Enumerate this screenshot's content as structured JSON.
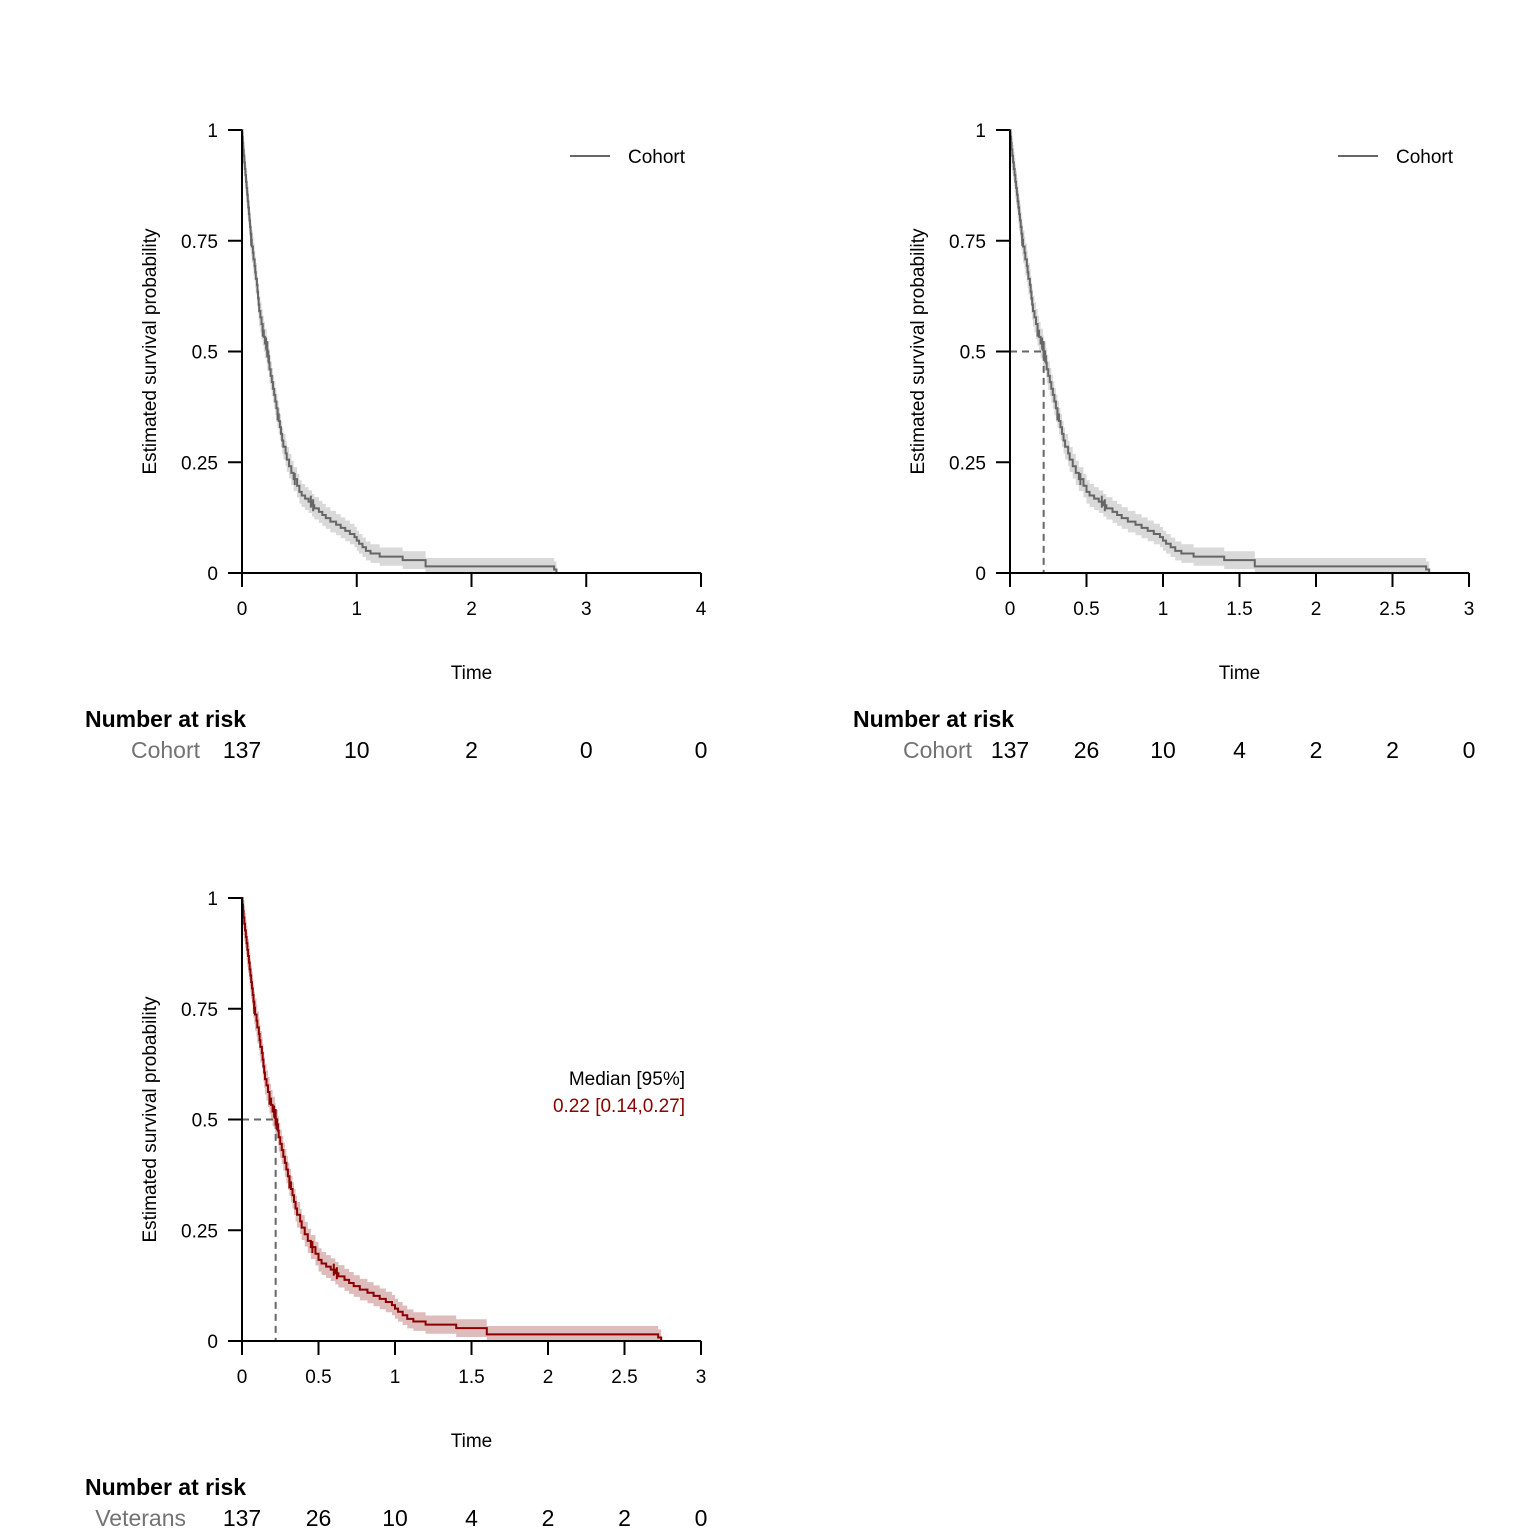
{
  "colors": {
    "grey_line": "#666666",
    "grey_band": "#d9d9d9",
    "red_line": "#8b0000",
    "red_band": "#dfbcbc",
    "strata_text": "#737373",
    "median_ref": "#666666"
  },
  "curve": {
    "steps": [
      [
        0,
        1
      ],
      [
        0.003,
        0.985
      ],
      [
        0.007,
        0.971
      ],
      [
        0.01,
        0.956
      ],
      [
        0.015,
        0.942
      ],
      [
        0.02,
        0.927
      ],
      [
        0.025,
        0.912
      ],
      [
        0.03,
        0.898
      ],
      [
        0.035,
        0.883
      ],
      [
        0.04,
        0.869
      ],
      [
        0.045,
        0.854
      ],
      [
        0.05,
        0.839
      ],
      [
        0.055,
        0.825
      ],
      [
        0.06,
        0.81
      ],
      [
        0.065,
        0.796
      ],
      [
        0.07,
        0.781
      ],
      [
        0.075,
        0.766
      ],
      [
        0.08,
        0.752
      ],
      [
        0.085,
        0.737
      ],
      [
        0.095,
        0.723
      ],
      [
        0.1,
        0.708
      ],
      [
        0.11,
        0.693
      ],
      [
        0.115,
        0.679
      ],
      [
        0.12,
        0.664
      ],
      [
        0.13,
        0.65
      ],
      [
        0.135,
        0.635
      ],
      [
        0.14,
        0.62
      ],
      [
        0.145,
        0.606
      ],
      [
        0.15,
        0.591
      ],
      [
        0.16,
        0.577
      ],
      [
        0.17,
        0.562
      ],
      [
        0.18,
        0.547
      ],
      [
        0.19,
        0.533
      ],
      [
        0.2,
        0.518
      ],
      [
        0.215,
        0.504
      ],
      [
        0.22,
        0.489
      ],
      [
        0.235,
        0.475
      ],
      [
        0.24,
        0.46
      ],
      [
        0.25,
        0.445
      ],
      [
        0.26,
        0.431
      ],
      [
        0.27,
        0.416
      ],
      [
        0.28,
        0.402
      ],
      [
        0.29,
        0.387
      ],
      [
        0.3,
        0.372
      ],
      [
        0.31,
        0.358
      ],
      [
        0.32,
        0.343
      ],
      [
        0.33,
        0.329
      ],
      [
        0.34,
        0.314
      ],
      [
        0.35,
        0.299
      ],
      [
        0.36,
        0.285
      ],
      [
        0.38,
        0.27
      ],
      [
        0.39,
        0.256
      ],
      [
        0.41,
        0.241
      ],
      [
        0.43,
        0.226
      ],
      [
        0.45,
        0.212
      ],
      [
        0.48,
        0.197
      ],
      [
        0.5,
        0.183
      ],
      [
        0.52,
        0.175
      ],
      [
        0.55,
        0.168
      ],
      [
        0.58,
        0.161
      ],
      [
        0.61,
        0.153
      ],
      [
        0.63,
        0.146
      ],
      [
        0.67,
        0.138
      ],
      [
        0.7,
        0.131
      ],
      [
        0.73,
        0.124
      ],
      [
        0.77,
        0.116
      ],
      [
        0.82,
        0.109
      ],
      [
        0.86,
        0.102
      ],
      [
        0.9,
        0.095
      ],
      [
        0.94,
        0.088
      ],
      [
        0.98,
        0.081
      ],
      [
        1.0,
        0.073
      ],
      [
        1.02,
        0.066
      ],
      [
        1.05,
        0.058
      ],
      [
        1.08,
        0.05
      ],
      [
        1.12,
        0.044
      ],
      [
        1.2,
        0.037
      ],
      [
        1.4,
        0.029
      ],
      [
        1.6,
        0.015
      ],
      [
        2.72,
        0.008
      ],
      [
        2.74,
        0
      ]
    ],
    "censored": [
      [
        0.08,
        0.752
      ],
      [
        0.18,
        0.547
      ],
      [
        0.21,
        0.518
      ],
      [
        0.22,
        0.51
      ],
      [
        0.23,
        0.489
      ],
      [
        0.31,
        0.358
      ],
      [
        0.46,
        0.212
      ],
      [
        0.6,
        0.161
      ],
      [
        0.62,
        0.153
      ]
    ],
    "ci_halfwidth": 0.04
  },
  "charts": [
    {
      "chart_data": {
        "type": "line",
        "ylabel": "Estimated survival probability",
        "xlabel": "Time",
        "xlim": [
          0,
          4
        ],
        "ylim": [
          0,
          1
        ],
        "xticks": [
          "0",
          "1",
          "2",
          "3",
          "4"
        ],
        "yticks": [
          "0",
          "0.25",
          "0.5",
          "0.75",
          "1"
        ],
        "series": [
          {
            "name": "Cohort",
            "color": "#666666"
          }
        ],
        "legend_position": "top-right",
        "median_reference": null,
        "risk_table": {
          "title": "Number at risk",
          "strata": "Cohort",
          "times": [
            0,
            1,
            2,
            3,
            4
          ],
          "values": [
            "137",
            "10",
            "2",
            "0",
            "0"
          ]
        }
      }
    },
    {
      "chart_data": {
        "type": "line",
        "ylabel": "Estimated survival probability",
        "xlabel": "Time",
        "xlim": [
          0,
          3
        ],
        "ylim": [
          0,
          1
        ],
        "xticks": [
          "0",
          "0.5",
          "1",
          "1.5",
          "2",
          "2.5",
          "3"
        ],
        "yticks": [
          "0",
          "0.25",
          "0.5",
          "0.75",
          "1"
        ],
        "series": [
          {
            "name": "Cohort",
            "color": "#666666"
          }
        ],
        "legend_position": "top-right",
        "median_reference": 0.22,
        "risk_table": {
          "title": "Number at risk",
          "strata": "Cohort",
          "times": [
            0,
            0.5,
            1,
            1.5,
            2,
            2.5,
            3
          ],
          "values": [
            "137",
            "26",
            "10",
            "4",
            "2",
            "2",
            "0"
          ]
        }
      }
    },
    {
      "chart_data": {
        "type": "line",
        "ylabel": "Estimated survival probability",
        "xlabel": "Time",
        "xlim": [
          0,
          3
        ],
        "ylim": [
          0,
          1
        ],
        "xticks": [
          "0",
          "0.5",
          "1",
          "1.5",
          "2",
          "2.5",
          "3"
        ],
        "yticks": [
          "0",
          "0.25",
          "0.5",
          "0.75",
          "1"
        ],
        "series": [
          {
            "name": "Veterans",
            "color": "#8b0000"
          }
        ],
        "median_reference": 0.22,
        "median_annotation": {
          "header": "Median [95%]",
          "value": "0.22 [0.14,0.27]"
        },
        "risk_table": {
          "title": "Number at risk",
          "strata": "Veterans",
          "times": [
            0,
            0.5,
            1,
            1.5,
            2,
            2.5,
            3
          ],
          "values": [
            "137",
            "26",
            "10",
            "4",
            "2",
            "2",
            "0"
          ]
        }
      }
    }
  ]
}
